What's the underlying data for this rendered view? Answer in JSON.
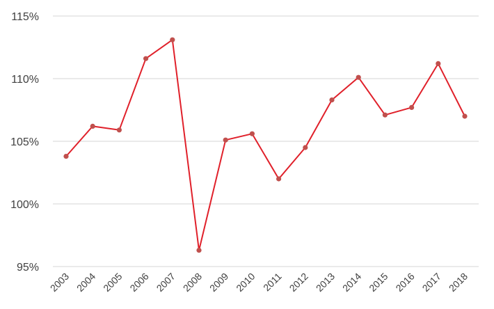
{
  "chart_data": {
    "type": "line",
    "title": "",
    "xlabel": "",
    "ylabel": "",
    "x": [
      "2003",
      "2004",
      "2005",
      "2006",
      "2007",
      "2008",
      "2009",
      "2010",
      "2011",
      "2012",
      "2013",
      "2014",
      "2015",
      "2016",
      "2017",
      "2018"
    ],
    "series": [
      {
        "values": [
          103.8,
          106.2,
          105.9,
          111.6,
          113.1,
          96.3,
          105.1,
          105.6,
          102.0,
          104.5,
          108.3,
          110.1,
          107.1,
          107.7,
          111.2,
          107.0
        ]
      }
    ],
    "ylim": [
      95,
      115
    ],
    "yticks": [
      95,
      100,
      105,
      110,
      115
    ],
    "ytick_labels": [
      "95%",
      "100%",
      "105%",
      "110%",
      "115%"
    ],
    "grid": true,
    "legend": "none",
    "colors": {
      "line": "#e0202a",
      "marker": "#c0504d",
      "grid": "#d4d4d4",
      "text": "#404040"
    }
  }
}
